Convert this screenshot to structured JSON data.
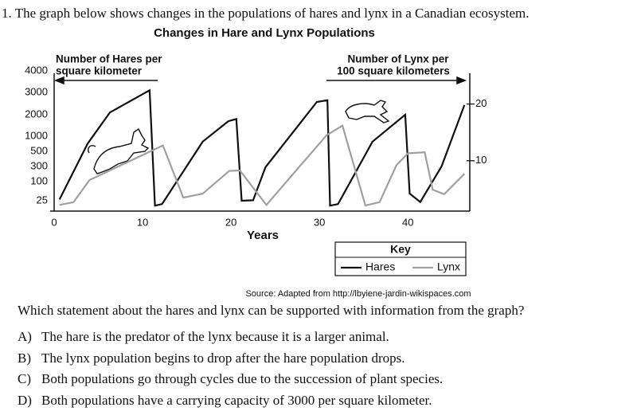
{
  "question": "1. The graph below shows changes in the populations of hares and lynx in a Canadian ecosystem.",
  "chart_data": {
    "type": "line",
    "title": "Changes in Hare and Lynx Populations",
    "x_label": "Years",
    "y_label": [
      "Number of Hares per",
      "square kilometer"
    ],
    "y2_label": [
      "Number of Lynx per",
      "100 square kilometers"
    ],
    "xlim": [
      0,
      47
    ],
    "xticks": [
      0,
      10,
      20,
      30,
      40
    ],
    "ylim": [
      0,
      4000
    ],
    "yticks": [
      25,
      100,
      300,
      500,
      1000,
      2000,
      3000,
      4000
    ],
    "y2lim": [
      0,
      25
    ],
    "y2ticks": [
      10,
      20
    ],
    "legend_title": "Key",
    "series": [
      {
        "name": "Hares",
        "color": "#111111",
        "x": [
          0.6,
          3.8,
          6.3,
          10.8,
          11.4,
          12.2,
          16.8,
          19.7,
          20.6,
          21.2,
          22.5,
          23.9,
          29.7,
          30.9,
          31.2,
          32.1,
          36.0,
          39.7,
          40.2,
          41.4,
          43.8,
          46.4
        ],
        "values": [
          30,
          760,
          2100,
          3100,
          13,
          17,
          820,
          1700,
          1800,
          25,
          27,
          290,
          2570,
          2650,
          13,
          17,
          820,
          2000,
          53,
          22,
          300,
          2440
        ]
      },
      {
        "name": "Lynx",
        "color": "#a0a0a0",
        "axis": "y2",
        "x": [
          0.6,
          2.2,
          4.0,
          12.3,
          14.6,
          16.8,
          19.8,
          21.0,
          24.0,
          30.8,
          32.6,
          35.2,
          36.8,
          38.7,
          40.0,
          41.9,
          42.8,
          44.1,
          46.4
        ],
        "values": [
          2.2,
          2.7,
          6.6,
          12.7,
          3.5,
          4.2,
          8.2,
          8.3,
          2.2,
          14.5,
          16.2,
          2.1,
          2.7,
          9.2,
          11.3,
          11.5,
          4.9,
          4.1,
          7.7
        ]
      }
    ]
  },
  "source": "Source: Adapted from http://lbyiene-jardin-wikispaces.com",
  "prompt": "Which statement about the hares and lynx can be supported with information from the graph?",
  "choices": [
    {
      "label": "A)",
      "text": "The hare is the predator of the lynx because it is a larger animal."
    },
    {
      "label": "B)",
      "text": "The lynx population begins to drop after the hare population drops."
    },
    {
      "label": "C)",
      "text": "Both populations go through cycles due to the succession of plant species."
    },
    {
      "label": "D)",
      "text": "Both populations have a carrying capacity of 3000 per square kilometer."
    }
  ]
}
